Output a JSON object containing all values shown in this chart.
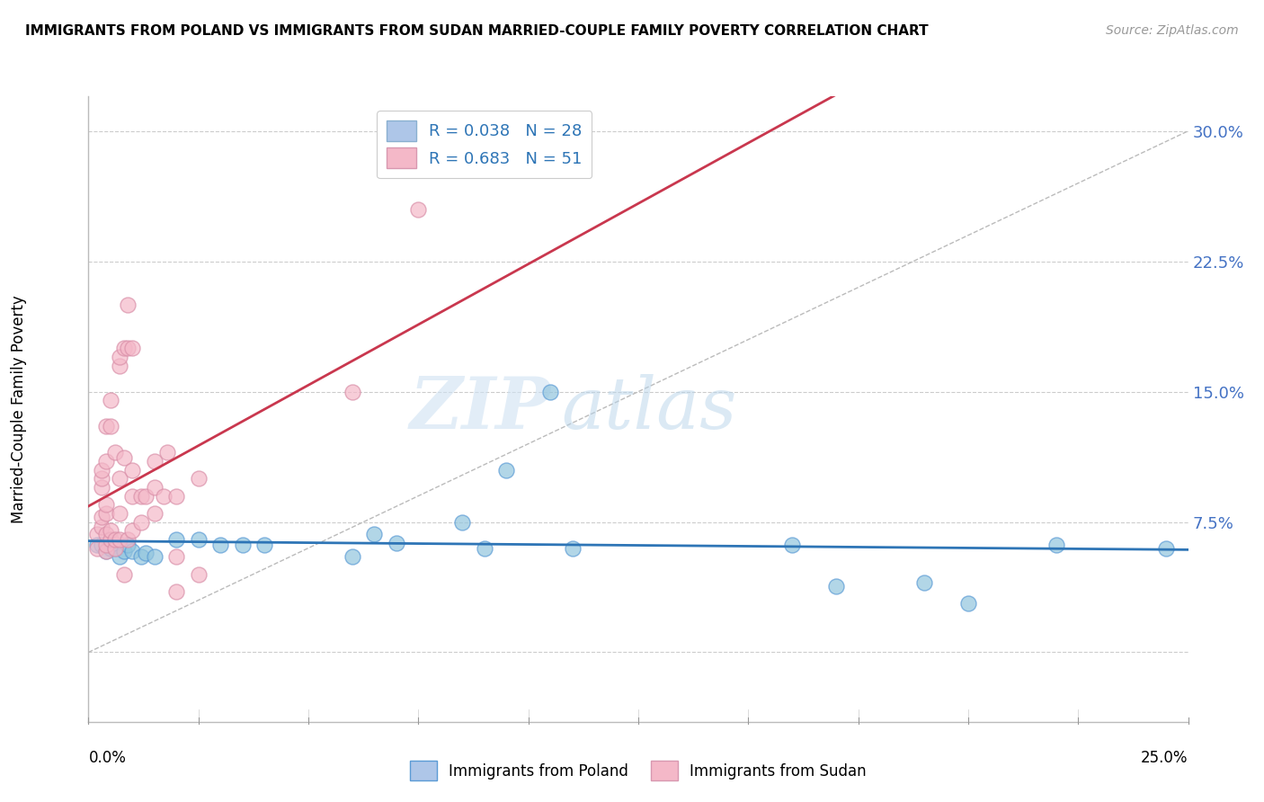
{
  "title": "IMMIGRANTS FROM POLAND VS IMMIGRANTS FROM SUDAN MARRIED-COUPLE FAMILY POVERTY CORRELATION CHART",
  "source": "Source: ZipAtlas.com",
  "ylabel": "Married-Couple Family Poverty",
  "xmin": 0.0,
  "xmax": 0.25,
  "ymin": -0.04,
  "ymax": 0.32,
  "yticks": [
    0.0,
    0.075,
    0.15,
    0.225,
    0.3
  ],
  "ytick_labels": [
    "",
    "7.5%",
    "15.0%",
    "22.5%",
    "30.0%"
  ],
  "xticks": [
    0.0,
    0.025,
    0.05,
    0.075,
    0.1,
    0.125,
    0.15,
    0.175,
    0.2,
    0.225,
    0.25
  ],
  "poland_color": "#92c5de",
  "poland_edge": "#5b9bd5",
  "sudan_color": "#f4b8c8",
  "sudan_edge": "#d98fa8",
  "trendline_poland_color": "#2e75b6",
  "trendline_sudan_color": "#c9374e",
  "watermark_zip": "ZIP",
  "watermark_atlas": "atlas",
  "grid_color": "#cccccc",
  "background_color": "#ffffff",
  "poland_points": [
    [
      0.002,
      0.062
    ],
    [
      0.003,
      0.062
    ],
    [
      0.004,
      0.058
    ],
    [
      0.005,
      0.06
    ],
    [
      0.006,
      0.06
    ],
    [
      0.007,
      0.055
    ],
    [
      0.008,
      0.058
    ],
    [
      0.009,
      0.062
    ],
    [
      0.01,
      0.058
    ],
    [
      0.012,
      0.055
    ],
    [
      0.013,
      0.057
    ],
    [
      0.015,
      0.055
    ],
    [
      0.02,
      0.065
    ],
    [
      0.025,
      0.065
    ],
    [
      0.03,
      0.062
    ],
    [
      0.035,
      0.062
    ],
    [
      0.04,
      0.062
    ],
    [
      0.06,
      0.055
    ],
    [
      0.065,
      0.068
    ],
    [
      0.07,
      0.063
    ],
    [
      0.085,
      0.075
    ],
    [
      0.09,
      0.06
    ],
    [
      0.095,
      0.105
    ],
    [
      0.105,
      0.15
    ],
    [
      0.11,
      0.06
    ],
    [
      0.16,
      0.062
    ],
    [
      0.17,
      0.038
    ],
    [
      0.19,
      0.04
    ],
    [
      0.2,
      0.028
    ],
    [
      0.22,
      0.062
    ],
    [
      0.245,
      0.06
    ]
  ],
  "sudan_points": [
    [
      0.002,
      0.06
    ],
    [
      0.002,
      0.068
    ],
    [
      0.003,
      0.072
    ],
    [
      0.003,
      0.078
    ],
    [
      0.003,
      0.095
    ],
    [
      0.003,
      0.1
    ],
    [
      0.003,
      0.105
    ],
    [
      0.004,
      0.058
    ],
    [
      0.004,
      0.062
    ],
    [
      0.004,
      0.068
    ],
    [
      0.004,
      0.08
    ],
    [
      0.004,
      0.085
    ],
    [
      0.004,
      0.11
    ],
    [
      0.004,
      0.13
    ],
    [
      0.005,
      0.065
    ],
    [
      0.005,
      0.07
    ],
    [
      0.005,
      0.13
    ],
    [
      0.005,
      0.145
    ],
    [
      0.006,
      0.06
    ],
    [
      0.006,
      0.065
    ],
    [
      0.006,
      0.115
    ],
    [
      0.007,
      0.065
    ],
    [
      0.007,
      0.08
    ],
    [
      0.007,
      0.1
    ],
    [
      0.007,
      0.165
    ],
    [
      0.007,
      0.17
    ],
    [
      0.008,
      0.045
    ],
    [
      0.008,
      0.112
    ],
    [
      0.008,
      0.175
    ],
    [
      0.009,
      0.065
    ],
    [
      0.009,
      0.175
    ],
    [
      0.009,
      0.2
    ],
    [
      0.01,
      0.07
    ],
    [
      0.01,
      0.09
    ],
    [
      0.01,
      0.105
    ],
    [
      0.01,
      0.175
    ],
    [
      0.012,
      0.075
    ],
    [
      0.012,
      0.09
    ],
    [
      0.013,
      0.09
    ],
    [
      0.015,
      0.08
    ],
    [
      0.015,
      0.095
    ],
    [
      0.015,
      0.11
    ],
    [
      0.017,
      0.09
    ],
    [
      0.018,
      0.115
    ],
    [
      0.02,
      0.035
    ],
    [
      0.02,
      0.055
    ],
    [
      0.02,
      0.09
    ],
    [
      0.025,
      0.045
    ],
    [
      0.025,
      0.1
    ],
    [
      0.06,
      0.15
    ],
    [
      0.075,
      0.255
    ]
  ]
}
